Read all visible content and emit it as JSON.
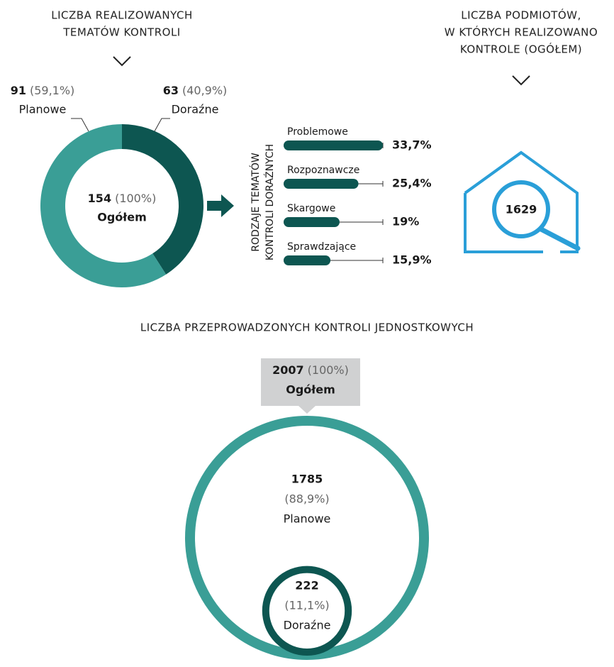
{
  "chart_data": [
    {
      "type": "pie",
      "title": [
        "LICZBA REALIZOWANYCH",
        "TEMATÓW KONTROLI"
      ],
      "categories": [
        "Planowe",
        "Doraźne"
      ],
      "values": [
        91,
        63
      ],
      "value_labels": [
        "(59,1%)",
        "(40,9%)"
      ],
      "colors": [
        "#3a9e96",
        "#0d5651"
      ],
      "total": 154,
      "total_label": "(100%)",
      "total_name": "Ogółem"
    },
    {
      "type": "bar",
      "title": [
        "RODZAJE TEMATÓW",
        "KONTROLI DORAŹNYCH"
      ],
      "categories": [
        "Problemowe",
        "Rozpoznawcze",
        "Skargowe",
        "Sprawdzające"
      ],
      "values": [
        33.7,
        25.4,
        19,
        15.9
      ],
      "value_labels": [
        "33,7%",
        "25,4%",
        "19%",
        "15,9%"
      ],
      "color": "#0d5651"
    },
    {
      "type": "metric",
      "title": [
        "LICZBA PODMIOTÓW,",
        "W KTÓRYCH REALIZOWANO",
        "KONTROLE (OGÓŁEM)"
      ],
      "value": 1629,
      "color": "#2a9fd8"
    },
    {
      "type": "bubble",
      "title": "LICZBA PRZEPROWADZONYCH KONTROLI JEDNOSTKOWYCH",
      "total": 2007,
      "total_label": "(100%)",
      "total_name": "Ogółem",
      "categories": [
        "Planowe",
        "Doraźne"
      ],
      "values": [
        1785,
        222
      ],
      "value_labels": [
        "(88,9%)",
        "(11,1%)"
      ],
      "colors": [
        "#3a9e96",
        "#0d5651"
      ]
    }
  ]
}
